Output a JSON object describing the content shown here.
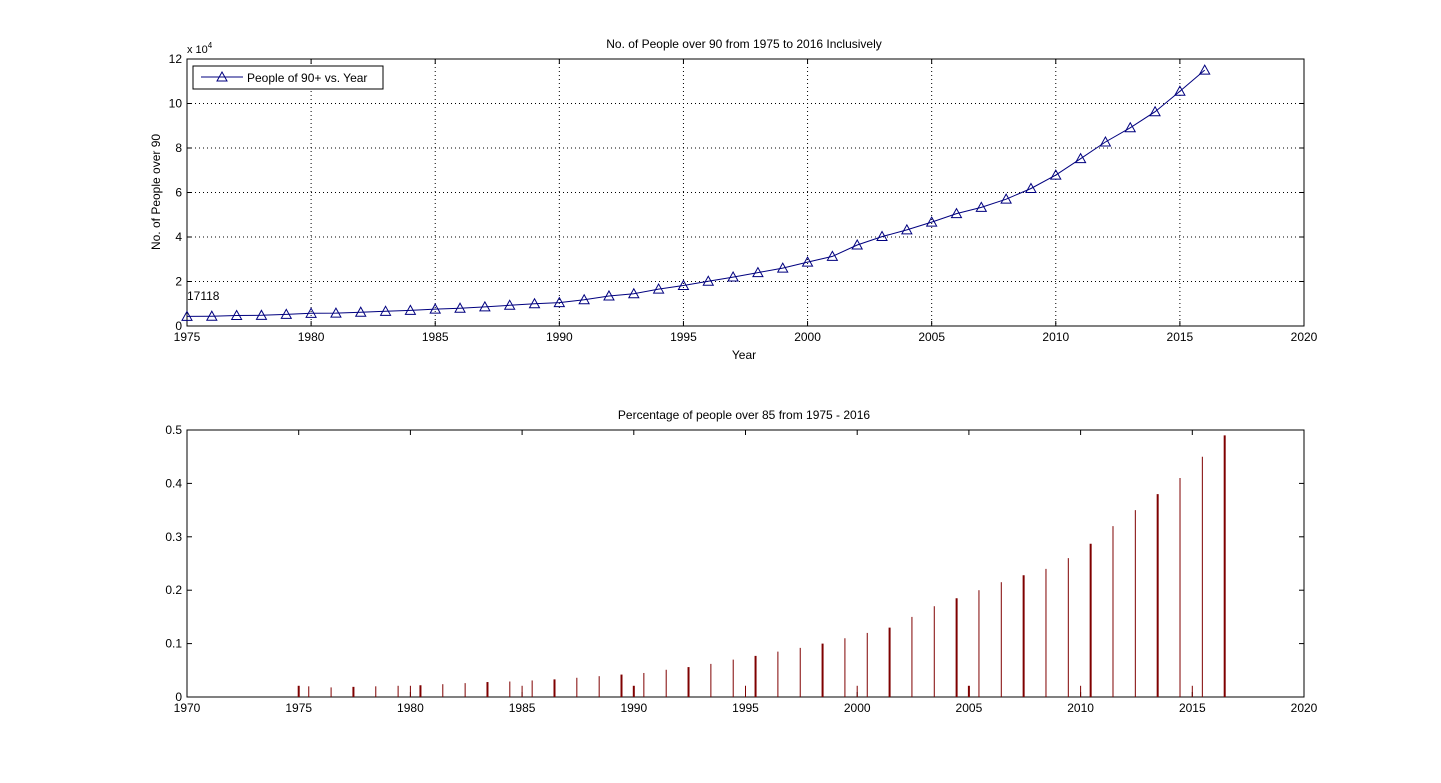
{
  "colors": {
    "line_series": "#00007f",
    "bar_series": "#7f0000",
    "grid": "#000000",
    "axes": "#000000",
    "background": "#ffffff"
  },
  "chart_data": [
    {
      "type": "line",
      "title": "No. of People over 90 from 1975 to 2016 Inclusively",
      "xlabel": "Year",
      "ylabel": "No. of People over 90",
      "y_exponent_label": "x 10",
      "y_exponent_power": "4",
      "y_scale": 10000,
      "xlim": [
        1975,
        2020
      ],
      "ylim": [
        0,
        120000
      ],
      "xticks": [
        1975,
        1980,
        1985,
        1990,
        1995,
        2000,
        2005,
        2010,
        2015,
        2020
      ],
      "yticks": [
        0,
        2,
        4,
        6,
        8,
        10,
        12
      ],
      "grid": true,
      "legend_position": "top-left",
      "annotation": {
        "text": "17118",
        "x": 1975,
        "y": 4400
      },
      "series": [
        {
          "name": "People of 90+ vs. Year",
          "marker": "triangle",
          "x": [
            1975,
            1976,
            1977,
            1978,
            1979,
            1980,
            1981,
            1982,
            1983,
            1984,
            1985,
            1986,
            1987,
            1988,
            1989,
            1990,
            1991,
            1992,
            1993,
            1994,
            1995,
            1996,
            1997,
            1998,
            1999,
            2000,
            2001,
            2002,
            2003,
            2004,
            2005,
            2006,
            2007,
            2008,
            2009,
            2010,
            2011,
            2012,
            2013,
            2014,
            2015,
            2016
          ],
          "values": [
            4300,
            4400,
            4700,
            4800,
            5200,
            5700,
            5800,
            6200,
            6600,
            7000,
            7600,
            8000,
            8600,
            9300,
            10000,
            10500,
            11800,
            13500,
            14500,
            16600,
            18200,
            20100,
            22000,
            24000,
            26000,
            28700,
            31300,
            36400,
            40200,
            43200,
            46700,
            50500,
            53300,
            57000,
            61800,
            67800,
            75200,
            82700,
            89100,
            96300,
            105500,
            115000
          ]
        }
      ]
    },
    {
      "type": "bar",
      "title": "Percentage of people over 85 from 1975 - 2016",
      "xlabel": "",
      "ylabel": "",
      "xlim": [
        1970,
        2020
      ],
      "ylim": [
        0,
        0.5
      ],
      "xticks": [
        1970,
        1975,
        1980,
        1985,
        1990,
        1995,
        2000,
        2005,
        2010,
        2015,
        2020
      ],
      "yticks": [
        0,
        0.1,
        0.2,
        0.3,
        0.4,
        0.5
      ],
      "grid": false,
      "series": [
        {
          "name": "",
          "x": [
            1975,
            1975.45,
            1976.45,
            1977.45,
            1978.45,
            1979.45,
            1980.45,
            1981.45,
            1982.45,
            1983.45,
            1984.45,
            1985.45,
            1986.45,
            1987.45,
            1988.45,
            1989.45,
            1990.45,
            1991.45,
            1992.45,
            1993.45,
            1994.45,
            1995.45,
            1996.45,
            1997.45,
            1998.45,
            1999.45,
            2000.45,
            2001.45,
            2002.45,
            2003.45,
            2004.45,
            2005.45,
            2006.45,
            2007.45,
            2008.45,
            2009.45,
            2010.45,
            2011.45,
            2012.45,
            2013.45,
            2014.45,
            2015.45,
            2016.45,
            1980,
            1985,
            1990,
            1995,
            2000,
            2005,
            2010,
            2015
          ],
          "values": [
            0.021,
            0.02,
            0.018,
            0.019,
            0.02,
            0.021,
            0.022,
            0.024,
            0.026,
            0.028,
            0.029,
            0.031,
            0.033,
            0.036,
            0.039,
            0.042,
            0.045,
            0.051,
            0.056,
            0.062,
            0.07,
            0.077,
            0.085,
            0.092,
            0.1,
            0.11,
            0.12,
            0.13,
            0.15,
            0.17,
            0.185,
            0.2,
            0.215,
            0.228,
            0.24,
            0.26,
            0.287,
            0.32,
            0.35,
            0.38,
            0.41,
            0.45,
            0.49,
            0.021,
            0.021,
            0.021,
            0.021,
            0.021,
            0.021,
            0.021,
            0.021
          ]
        }
      ]
    }
  ]
}
